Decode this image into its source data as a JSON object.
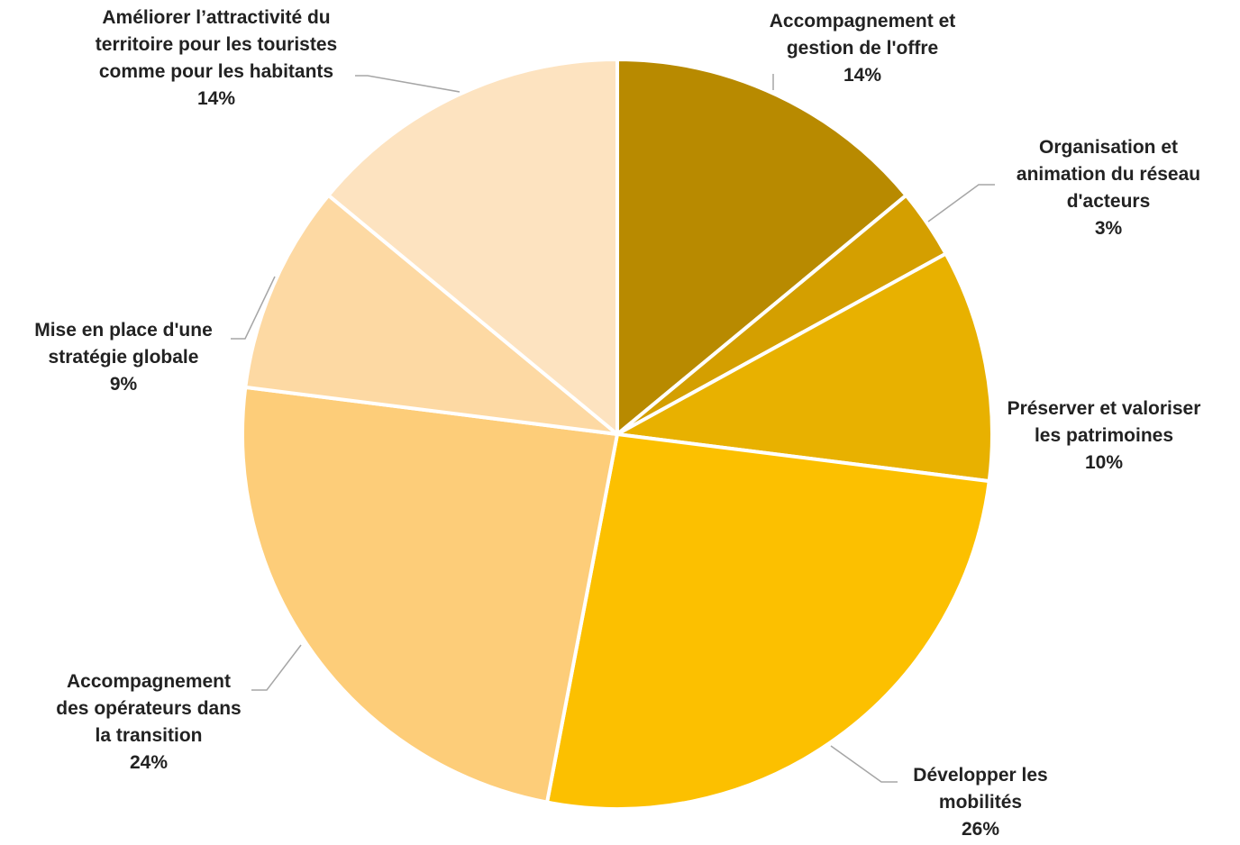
{
  "chart_data": {
    "type": "pie",
    "title": "",
    "slices": [
      {
        "label": [
          "Accompagnement et",
          "gestion de l'offre"
        ],
        "value": 14,
        "display": "14%",
        "color": "#b88a00"
      },
      {
        "label": [
          "Organisation et",
          "animation du réseau",
          "d'acteurs"
        ],
        "value": 3,
        "display": "3%",
        "color": "#d49f00"
      },
      {
        "label": [
          "Préserver et valoriser",
          "les patrimoines"
        ],
        "value": 10,
        "display": "10%",
        "color": "#e8b100"
      },
      {
        "label": [
          "Développer les",
          "mobilités"
        ],
        "value": 26,
        "display": "26%",
        "color": "#fcc000"
      },
      {
        "label": [
          "Accompagnement",
          "des opérateurs dans",
          "la transition"
        ],
        "value": 24,
        "display": "24%",
        "color": "#fdcd79"
      },
      {
        "label": [
          "Mise en place d'une",
          "stratégie globale"
        ],
        "value": 9,
        "display": "9%",
        "color": "#fdd9a3"
      },
      {
        "label": [
          "Améliorer l’attractivité du",
          "territoire pour les touristes",
          "comme pour les habitants"
        ],
        "value": 14,
        "display": "14%",
        "color": "#fde3c0"
      }
    ]
  }
}
